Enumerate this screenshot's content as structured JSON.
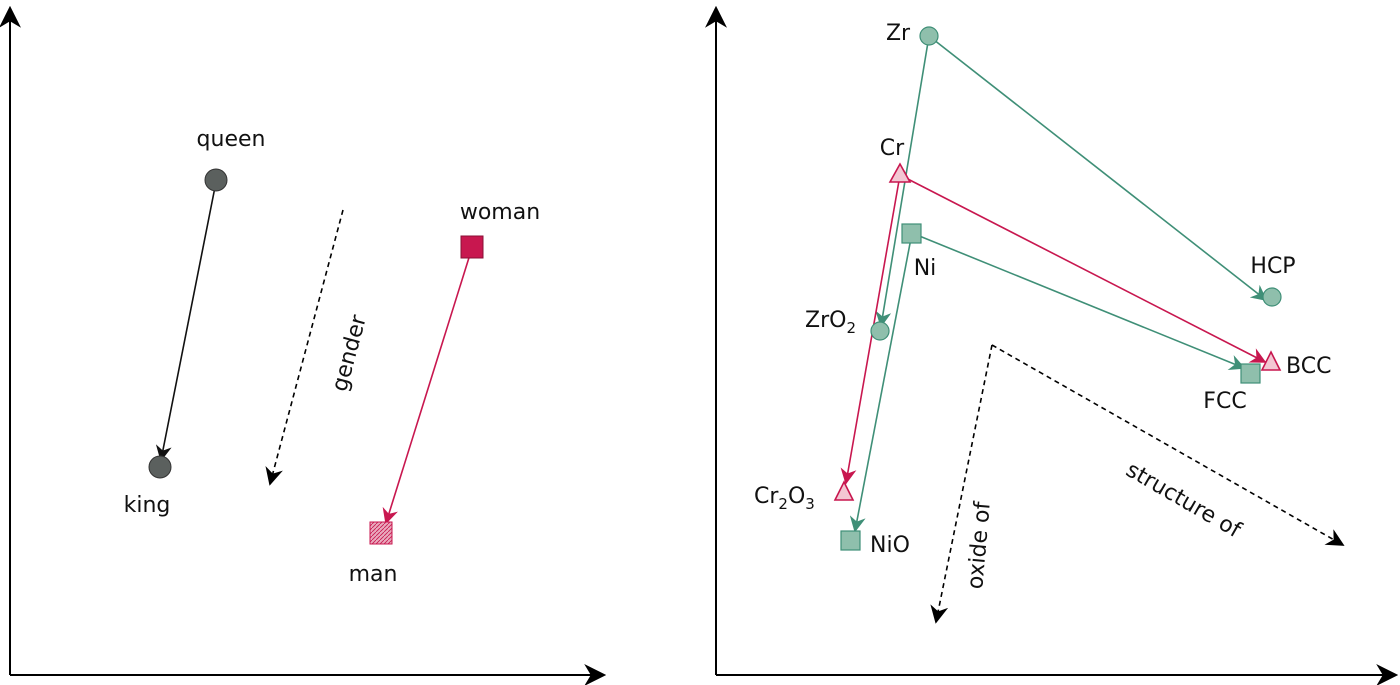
{
  "left_panel": {
    "points": {
      "queen": "queen",
      "king": "king",
      "woman": "woman",
      "man": "man"
    },
    "direction_label": "gender"
  },
  "right_panel": {
    "points": {
      "zr": "Zr",
      "cr": "Cr",
      "ni": "Ni",
      "zro2_base": "ZrO",
      "zro2_sub": "2",
      "cr2o3_a": "Cr",
      "cr2o3_sub1": "2",
      "cr2o3_b": "O",
      "cr2o3_sub2": "3",
      "nio": "NiO",
      "hcp": "HCP",
      "bcc": "BCC",
      "fcc": "FCC"
    },
    "direction_labels": {
      "oxide": "oxide of",
      "structure": "structure of"
    }
  },
  "colors": {
    "dark_gray": "#5b605e",
    "crimson": "#c8174f",
    "teal": "#3f8f77",
    "teal_fill": "#8fbfac",
    "crimson_light": "#f3c7d3"
  }
}
